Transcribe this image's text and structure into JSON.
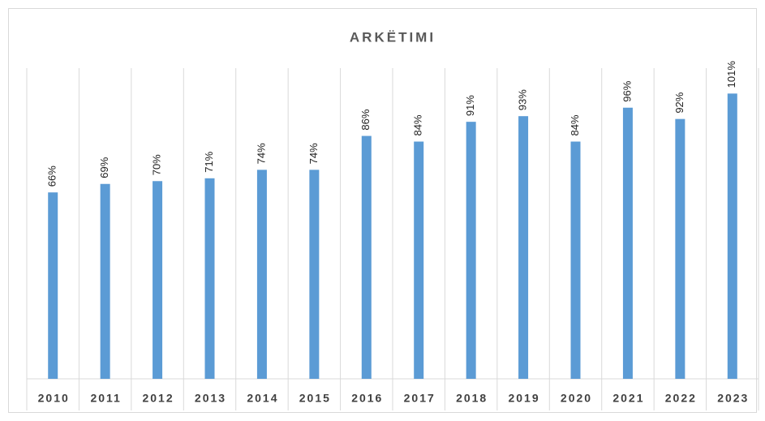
{
  "chart_data": {
    "type": "bar",
    "title": "ARKËTIMI",
    "categories": [
      "2010",
      "2011",
      "2012",
      "2013",
      "2014",
      "2015",
      "2016",
      "2017",
      "2018",
      "2019",
      "2020",
      "2021",
      "2022",
      "2023"
    ],
    "values": [
      66,
      69,
      70,
      71,
      74,
      74,
      86,
      84,
      91,
      93,
      84,
      96,
      92,
      101
    ],
    "value_labels": [
      "66%",
      "69%",
      "70%",
      "71%",
      "74%",
      "74%",
      "86%",
      "84%",
      "91%",
      "93%",
      "84%",
      "96%",
      "92%",
      "101%"
    ],
    "color": "#5b9bd5",
    "ylim": [
      0,
      110
    ]
  }
}
